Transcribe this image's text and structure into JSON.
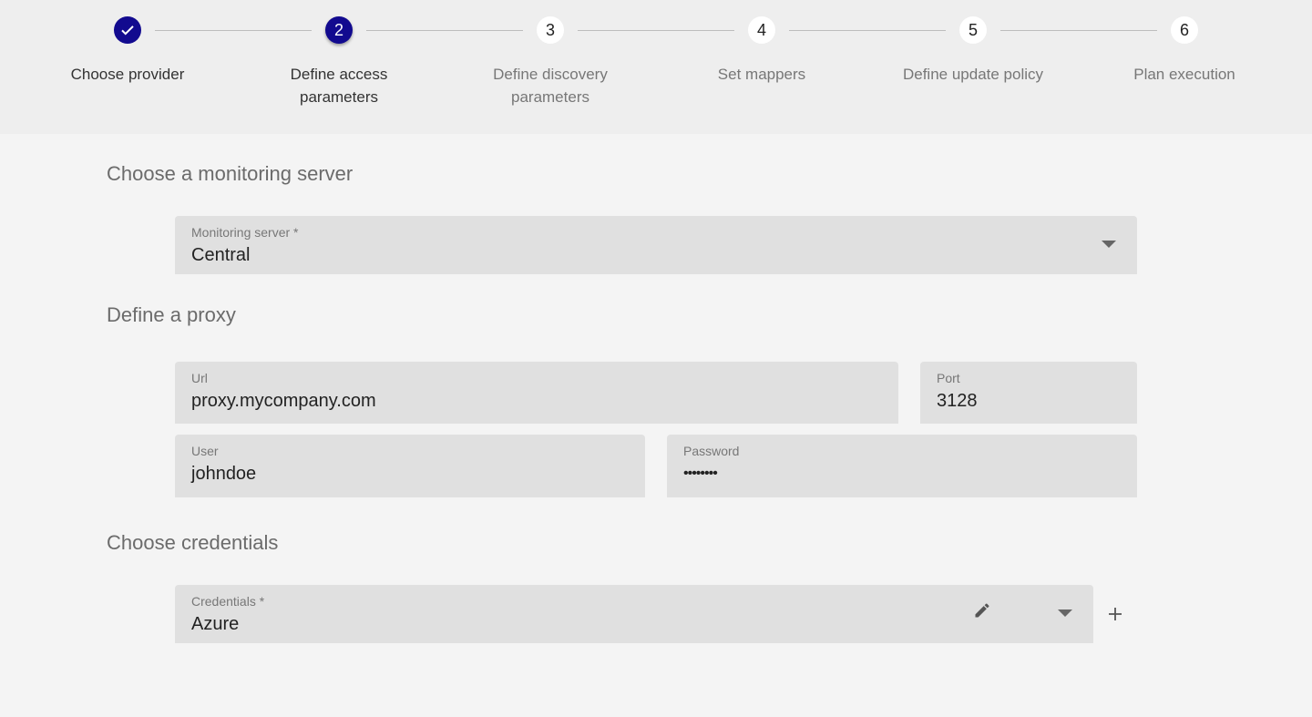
{
  "stepper": {
    "steps": [
      {
        "number": "1",
        "label": "Choose provider",
        "state": "completed",
        "icon": "check-icon"
      },
      {
        "number": "2",
        "label": "Define access parameters",
        "state": "active"
      },
      {
        "number": "3",
        "label": "Define discovery parameters",
        "state": "pending"
      },
      {
        "number": "4",
        "label": "Set mappers",
        "state": "pending"
      },
      {
        "number": "5",
        "label": "Define update policy",
        "state": "pending"
      },
      {
        "number": "6",
        "label": "Plan execution",
        "state": "pending"
      }
    ],
    "accent": "#120a8f"
  },
  "monitoring": {
    "heading": "Choose a monitoring server",
    "label": "Monitoring server *",
    "value": "Central"
  },
  "proxy": {
    "heading": "Define a proxy",
    "url": {
      "label": "Url",
      "value": "proxy.mycompany.com"
    },
    "port": {
      "label": "Port",
      "value": "3128"
    },
    "user": {
      "label": "User",
      "value": "johndoe"
    },
    "password": {
      "label": "Password",
      "value": "••••••••"
    }
  },
  "credentials": {
    "heading": "Choose credentials",
    "label": "Credentials *",
    "value": "Azure",
    "edit_icon": "pencil-icon",
    "add_icon": "plus-icon"
  }
}
